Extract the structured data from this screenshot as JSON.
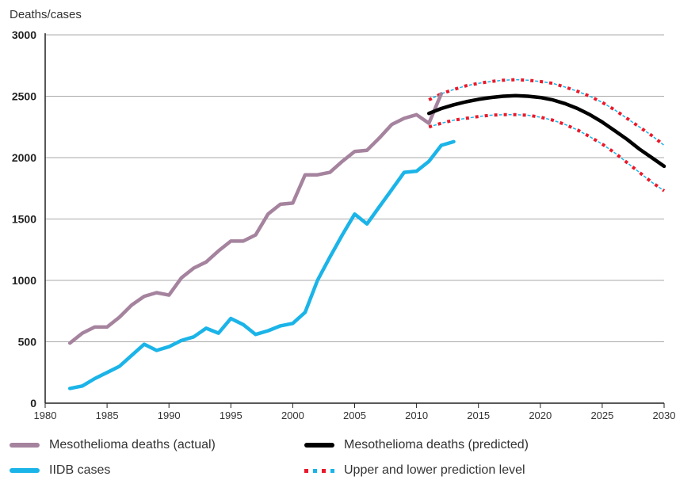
{
  "chart_data": {
    "type": "line",
    "ylabel": "Deaths/cases",
    "xlim": [
      1980,
      2030
    ],
    "ylim": [
      0,
      3000
    ],
    "xticks": [
      "1980",
      "1985",
      "1990",
      "1995",
      "2000",
      "2005",
      "2010",
      "2015",
      "2020",
      "2025",
      "2030"
    ],
    "yticks": [
      "0",
      "500",
      "1000",
      "1500",
      "2000",
      "2500",
      "3000"
    ],
    "grid": "horizontal",
    "legend_position": "bottom",
    "colors": {
      "actual": "#a5839e",
      "predicted": "#000000",
      "iidb": "#1bb4e8",
      "band_red": "#e8192b",
      "band_blue": "#1bb4e8",
      "grid": "#aaaaaa"
    },
    "series": [
      {
        "name": "Mesothelioma deaths (actual)",
        "x": [
          1982,
          1983,
          1984,
          1985,
          1986,
          1987,
          1988,
          1989,
          1990,
          1991,
          1992,
          1993,
          1994,
          1995,
          1996,
          1997,
          1998,
          1999,
          2000,
          2001,
          2002,
          2003,
          2004,
          2005,
          2006,
          2007,
          2008,
          2009,
          2010,
          2011,
          2012
        ],
        "values": [
          490,
          570,
          620,
          620,
          700,
          800,
          870,
          900,
          880,
          1020,
          1100,
          1150,
          1240,
          1320,
          1320,
          1370,
          1540,
          1620,
          1630,
          1860,
          1860,
          1880,
          1970,
          2050,
          2060,
          2160,
          2270,
          2320,
          2350,
          2280,
          2520
        ]
      },
      {
        "name": "IIDB cases",
        "x": [
          1982,
          1983,
          1984,
          1985,
          1986,
          1987,
          1988,
          1989,
          1990,
          1991,
          1992,
          1993,
          1994,
          1995,
          1996,
          1997,
          1998,
          1999,
          2000,
          2001,
          2002,
          2003,
          2004,
          2005,
          2006,
          2007,
          2008,
          2009,
          2010,
          2011,
          2012,
          2013
        ],
        "values": [
          120,
          140,
          200,
          250,
          300,
          390,
          480,
          430,
          460,
          510,
          540,
          610,
          570,
          690,
          640,
          560,
          590,
          630,
          650,
          740,
          1000,
          1190,
          1370,
          1540,
          1460,
          1600,
          1740,
          1880,
          1890,
          1970,
          2100,
          2130
        ]
      },
      {
        "name": "Mesothelioma deaths (predicted)",
        "x": [
          2011,
          2012,
          2013,
          2014,
          2015,
          2016,
          2017,
          2018,
          2019,
          2020,
          2021,
          2022,
          2023,
          2024,
          2025,
          2026,
          2027,
          2028,
          2029,
          2030
        ],
        "values": [
          2360,
          2400,
          2430,
          2455,
          2475,
          2490,
          2500,
          2505,
          2500,
          2490,
          2470,
          2440,
          2400,
          2350,
          2290,
          2220,
          2150,
          2070,
          2000,
          1930
        ]
      },
      {
        "name": "Upper prediction level",
        "x": [
          2011,
          2012,
          2013,
          2014,
          2015,
          2016,
          2017,
          2018,
          2019,
          2020,
          2021,
          2022,
          2023,
          2024,
          2025,
          2026,
          2027,
          2028,
          2029,
          2030
        ],
        "values": [
          2470,
          2520,
          2555,
          2585,
          2605,
          2620,
          2630,
          2635,
          2630,
          2620,
          2605,
          2575,
          2540,
          2500,
          2450,
          2390,
          2320,
          2250,
          2180,
          2100
        ]
      },
      {
        "name": "Lower prediction level",
        "x": [
          2011,
          2012,
          2013,
          2014,
          2015,
          2016,
          2017,
          2018,
          2019,
          2020,
          2021,
          2022,
          2023,
          2024,
          2025,
          2026,
          2027,
          2028,
          2029,
          2030
        ],
        "values": [
          2250,
          2280,
          2305,
          2320,
          2335,
          2345,
          2350,
          2350,
          2345,
          2330,
          2305,
          2270,
          2225,
          2170,
          2110,
          2040,
          1960,
          1880,
          1800,
          1730
        ]
      }
    ],
    "legend": {
      "actual": "Mesothelioma deaths (actual)",
      "predicted": "Mesothelioma deaths (predicted)",
      "iidb": "IIDB cases",
      "band": "Upper and lower prediction level"
    }
  }
}
